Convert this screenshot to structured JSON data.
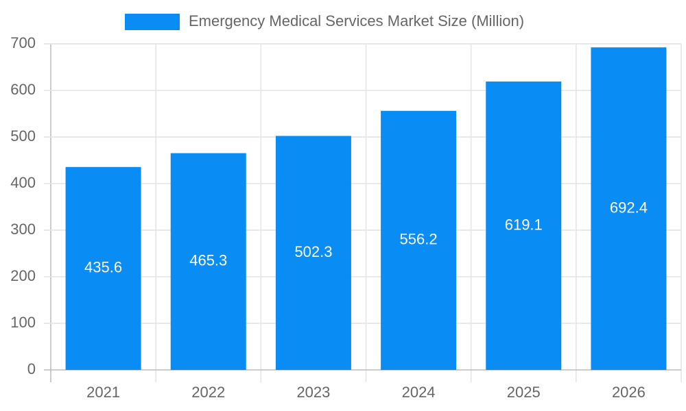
{
  "chart_data": {
    "type": "bar",
    "categories": [
      "2021",
      "2022",
      "2023",
      "2024",
      "2025",
      "2026"
    ],
    "series": [
      {
        "name": "Emergency Medical Services Market Size (Million)",
        "color": "#0a8cf5",
        "values": [
          435.6,
          465.3,
          502.3,
          556.2,
          619.1,
          692.4
        ]
      }
    ],
    "ylim": [
      0,
      700
    ],
    "yticks": [
      0,
      100,
      200,
      300,
      400,
      500,
      600,
      700
    ],
    "grid": true,
    "legend": "top"
  }
}
